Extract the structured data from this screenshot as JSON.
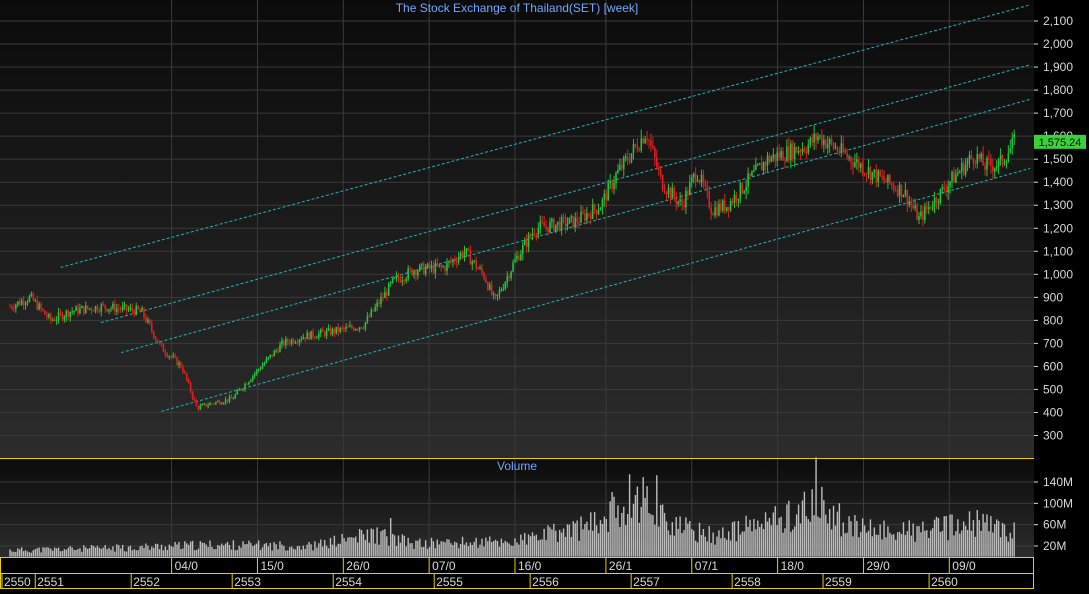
{
  "colors": {
    "background": "#000000",
    "panel_gradient_top": "#0b0b0b",
    "panel_gradient_bottom": "#2c2c2c",
    "grid": "#3a3a3a",
    "title": "#6fa8ff",
    "axis_text": "#d8d8d8",
    "up_candle": "#22c43a",
    "down_candle": "#e02020",
    "trend_channel": "#1fb5a8",
    "volume_bar": "#bdbdbd",
    "price_badge_bg": "#3ad13a",
    "price_badge_text": "#0a0a0a",
    "panel_border": "#e8d000"
  },
  "chart_data": [
    {
      "type": "candlestick",
      "title": "The Stock Exchange of Thailand(SET) [week]",
      "ylabel": "",
      "y_ticks": [
        "300",
        "400",
        "500",
        "600",
        "700",
        "800",
        "900",
        "1,000",
        "1,100",
        "1,200",
        "1,300",
        "1,400",
        "1,500",
        "1,600",
        "1,700",
        "1,800",
        "1,900",
        "2,000",
        "2,100"
      ],
      "ylim": [
        200,
        2170
      ],
      "last_price_label": "1,575.24",
      "last_price": 1575.24,
      "x_date_labels": [
        "04/0",
        "15/0",
        "26/0",
        "07/0",
        "16/0",
        "26/1",
        "07/1",
        "18/0",
        "29/0",
        "09/0"
      ],
      "x_year_labels": [
        "2550",
        "2551",
        "2552",
        "2553",
        "2554",
        "2555",
        "2556",
        "2557",
        "2558",
        "2559",
        "2560"
      ],
      "grid": true,
      "series_close_anchors": [
        {
          "year": 2550.0,
          "close": 860
        },
        {
          "year": 2550.2,
          "close": 900
        },
        {
          "year": 2550.4,
          "close": 800
        },
        {
          "year": 2550.6,
          "close": 840
        },
        {
          "year": 2550.9,
          "close": 860
        },
        {
          "year": 2551.3,
          "close": 840
        },
        {
          "year": 2551.5,
          "close": 680
        },
        {
          "year": 2551.7,
          "close": 600
        },
        {
          "year": 2551.85,
          "close": 420
        },
        {
          "year": 2552.0,
          "close": 440
        },
        {
          "year": 2552.2,
          "close": 460
        },
        {
          "year": 2552.4,
          "close": 560
        },
        {
          "year": 2552.7,
          "close": 700
        },
        {
          "year": 2552.9,
          "close": 730
        },
        {
          "year": 2553.3,
          "close": 760
        },
        {
          "year": 2553.5,
          "close": 780
        },
        {
          "year": 2553.8,
          "close": 970
        },
        {
          "year": 2554.0,
          "close": 1020
        },
        {
          "year": 2554.3,
          "close": 1030
        },
        {
          "year": 2554.5,
          "close": 1100
        },
        {
          "year": 2554.7,
          "close": 990
        },
        {
          "year": 2554.8,
          "close": 880
        },
        {
          "year": 2555.0,
          "close": 1060
        },
        {
          "year": 2555.2,
          "close": 1200
        },
        {
          "year": 2555.6,
          "close": 1230
        },
        {
          "year": 2555.85,
          "close": 1300
        },
        {
          "year": 2556.0,
          "close": 1430
        },
        {
          "year": 2556.3,
          "close": 1620
        },
        {
          "year": 2556.45,
          "close": 1400
        },
        {
          "year": 2556.65,
          "close": 1300
        },
        {
          "year": 2556.8,
          "close": 1450
        },
        {
          "year": 2556.95,
          "close": 1280
        },
        {
          "year": 2557.1,
          "close": 1300
        },
        {
          "year": 2557.5,
          "close": 1500
        },
        {
          "year": 2557.9,
          "close": 1560
        },
        {
          "year": 2558.0,
          "close": 1600
        },
        {
          "year": 2558.3,
          "close": 1510
        },
        {
          "year": 2558.6,
          "close": 1420
        },
        {
          "year": 2558.85,
          "close": 1360
        },
        {
          "year": 2558.95,
          "close": 1280
        },
        {
          "year": 2559.0,
          "close": 1240
        },
        {
          "year": 2559.3,
          "close": 1400
        },
        {
          "year": 2559.55,
          "close": 1520
        },
        {
          "year": 2559.65,
          "close": 1470
        },
        {
          "year": 2559.8,
          "close": 1480
        },
        {
          "year": 2559.95,
          "close": 1575.24
        }
      ],
      "trend_channel_lines": [
        {
          "label": "",
          "start": {
            "year": 2550.5,
            "value": 1030
          },
          "end": {
            "year": 2560.1,
            "value": 2170
          }
        },
        {
          "label": "",
          "start": {
            "year": 2550.9,
            "value": 790
          },
          "end": {
            "year": 2560.1,
            "value": 1910
          }
        },
        {
          "label": "",
          "start": {
            "year": 2551.1,
            "value": 660
          },
          "end": {
            "year": 2560.1,
            "value": 1760
          }
        },
        {
          "label": "",
          "start": {
            "year": 2551.5,
            "value": 405
          },
          "end": {
            "year": 2560.1,
            "value": 1460
          }
        }
      ]
    },
    {
      "type": "bar",
      "title": "Volume",
      "y_ticks": [
        "20M",
        "60M",
        "100M",
        "140M"
      ],
      "ylim": [
        0,
        170
      ],
      "volume_anchors_millions": [
        {
          "year": 2550.0,
          "v": 12
        },
        {
          "year": 2551.0,
          "v": 16
        },
        {
          "year": 2552.0,
          "v": 22
        },
        {
          "year": 2553.0,
          "v": 20
        },
        {
          "year": 2553.6,
          "v": 42
        },
        {
          "year": 2554.0,
          "v": 24
        },
        {
          "year": 2555.0,
          "v": 28
        },
        {
          "year": 2555.8,
          "v": 60
        },
        {
          "year": 2556.2,
          "v": 120
        },
        {
          "year": 2556.6,
          "v": 55
        },
        {
          "year": 2557.0,
          "v": 38
        },
        {
          "year": 2557.6,
          "v": 70
        },
        {
          "year": 2558.0,
          "v": 95
        },
        {
          "year": 2558.4,
          "v": 50
        },
        {
          "year": 2559.0,
          "v": 48
        },
        {
          "year": 2559.6,
          "v": 62
        },
        {
          "year": 2559.95,
          "v": 45
        }
      ]
    }
  ]
}
